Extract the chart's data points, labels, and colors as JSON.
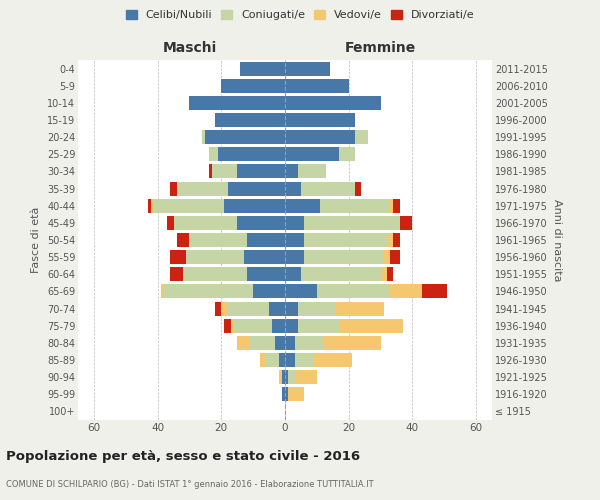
{
  "age_groups": [
    "100+",
    "95-99",
    "90-94",
    "85-89",
    "80-84",
    "75-79",
    "70-74",
    "65-69",
    "60-64",
    "55-59",
    "50-54",
    "45-49",
    "40-44",
    "35-39",
    "30-34",
    "25-29",
    "20-24",
    "15-19",
    "10-14",
    "5-9",
    "0-4"
  ],
  "birth_years": [
    "≤ 1915",
    "1916-1920",
    "1921-1925",
    "1926-1930",
    "1931-1935",
    "1936-1940",
    "1941-1945",
    "1946-1950",
    "1951-1955",
    "1956-1960",
    "1961-1965",
    "1966-1970",
    "1971-1975",
    "1976-1980",
    "1981-1985",
    "1986-1990",
    "1991-1995",
    "1996-2000",
    "2001-2005",
    "2006-2010",
    "2011-2015"
  ],
  "males": {
    "celibi": [
      0,
      1,
      1,
      2,
      3,
      4,
      5,
      10,
      12,
      13,
      12,
      15,
      19,
      18,
      15,
      21,
      25,
      22,
      30,
      20,
      14
    ],
    "coniugati": [
      0,
      0,
      0,
      4,
      8,
      12,
      13,
      28,
      20,
      18,
      18,
      20,
      22,
      16,
      8,
      3,
      1,
      0,
      0,
      0,
      0
    ],
    "vedovi": [
      0,
      0,
      1,
      2,
      4,
      1,
      2,
      1,
      0,
      0,
      0,
      0,
      1,
      0,
      0,
      0,
      0,
      0,
      0,
      0,
      0
    ],
    "divorziati": [
      0,
      0,
      0,
      0,
      0,
      2,
      2,
      0,
      4,
      5,
      4,
      2,
      1,
      2,
      1,
      0,
      0,
      0,
      0,
      0,
      0
    ]
  },
  "females": {
    "nubili": [
      0,
      1,
      1,
      3,
      3,
      4,
      4,
      10,
      5,
      6,
      6,
      6,
      11,
      5,
      4,
      17,
      22,
      22,
      30,
      20,
      14
    ],
    "coniugate": [
      0,
      0,
      2,
      6,
      9,
      13,
      12,
      23,
      25,
      25,
      26,
      30,
      22,
      17,
      9,
      5,
      4,
      0,
      0,
      0,
      0
    ],
    "vedove": [
      0,
      5,
      7,
      12,
      18,
      20,
      15,
      10,
      2,
      2,
      2,
      0,
      1,
      0,
      0,
      0,
      0,
      0,
      0,
      0,
      0
    ],
    "divorziate": [
      0,
      0,
      0,
      0,
      0,
      0,
      0,
      8,
      2,
      3,
      2,
      4,
      2,
      2,
      0,
      0,
      0,
      0,
      0,
      0,
      0
    ]
  },
  "colors": {
    "celibi": "#4878a8",
    "coniugati": "#c5d5a5",
    "vedovi": "#f5c870",
    "divorziati": "#cc2211"
  },
  "title": "Popolazione per età, sesso e stato civile - 2016",
  "subtitle": "COMUNE DI SCHILPARIO (BG) - Dati ISTAT 1° gennaio 2016 - Elaborazione TUTTITALIA.IT",
  "ylabel_left": "Fasce di età",
  "ylabel_right": "Anni di nascita",
  "xlabel_left": "Maschi",
  "xlabel_right": "Femmine",
  "xlim": 65,
  "legend_labels": [
    "Celibi/Nubili",
    "Coniugati/e",
    "Vedovi/e",
    "Divorziati/e"
  ],
  "bg_color": "#f0f0eb",
  "bar_bg": "#ffffff"
}
